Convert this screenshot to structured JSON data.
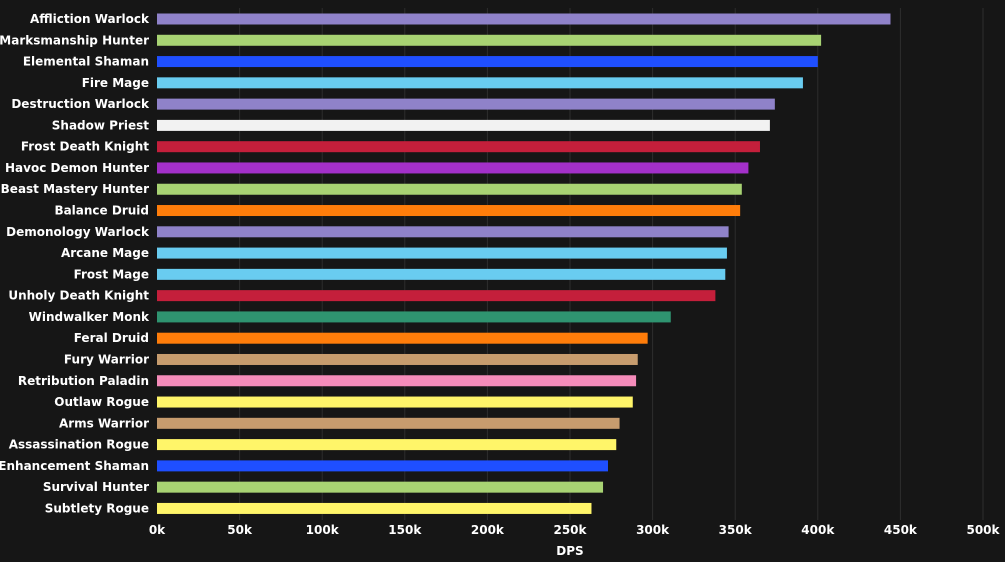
{
  "chart_data": {
    "type": "bar",
    "orientation": "horizontal",
    "xlabel": "DPS",
    "ylabel": "",
    "xlim": [
      0,
      500000
    ],
    "x_ticks": [
      0,
      50000,
      100000,
      150000,
      200000,
      250000,
      300000,
      350000,
      400000,
      450000,
      500000
    ],
    "x_tick_labels": [
      "0k",
      "50k",
      "100k",
      "150k",
      "200k",
      "250k",
      "300k",
      "350k",
      "400k",
      "450k",
      "500k"
    ],
    "grid": true,
    "legend": "none",
    "bars": [
      {
        "label": "Affliction Warlock",
        "value": 444000,
        "color": "#8f82c9"
      },
      {
        "label": "Marksmanship Hunter",
        "value": 402000,
        "color": "#a8d373"
      },
      {
        "label": "Elemental Shaman",
        "value": 400000,
        "color": "#1f4fff"
      },
      {
        "label": "Fire Mage",
        "value": 391000,
        "color": "#69ccf0"
      },
      {
        "label": "Destruction Warlock",
        "value": 374000,
        "color": "#8f82c9"
      },
      {
        "label": "Shadow Priest",
        "value": 371000,
        "color": "#f2f2f2"
      },
      {
        "label": "Frost Death Knight",
        "value": 365000,
        "color": "#c41f3b"
      },
      {
        "label": "Havoc Demon Hunter",
        "value": 358000,
        "color": "#a330c9"
      },
      {
        "label": "Beast Mastery Hunter",
        "value": 354000,
        "color": "#a8d373"
      },
      {
        "label": "Balance Druid",
        "value": 353000,
        "color": "#ff7d0a"
      },
      {
        "label": "Demonology Warlock",
        "value": 346000,
        "color": "#8f82c9"
      },
      {
        "label": "Arcane Mage",
        "value": 345000,
        "color": "#69ccf0"
      },
      {
        "label": "Frost Mage",
        "value": 344000,
        "color": "#69ccf0"
      },
      {
        "label": "Unholy Death Knight",
        "value": 338000,
        "color": "#c41f3b"
      },
      {
        "label": "Windwalker Monk",
        "value": 311000,
        "color": "#2f9470"
      },
      {
        "label": "Feral Druid",
        "value": 297000,
        "color": "#ff7d0a"
      },
      {
        "label": "Fury Warrior",
        "value": 291000,
        "color": "#c79c6e"
      },
      {
        "label": "Retribution Paladin",
        "value": 290000,
        "color": "#f58cba"
      },
      {
        "label": "Outlaw Rogue",
        "value": 288000,
        "color": "#fff569"
      },
      {
        "label": "Arms Warrior",
        "value": 280000,
        "color": "#c79c6e"
      },
      {
        "label": "Assassination Rogue",
        "value": 278000,
        "color": "#fff569"
      },
      {
        "label": "Enhancement Shaman",
        "value": 273000,
        "color": "#1f4fff"
      },
      {
        "label": "Survival Hunter",
        "value": 270000,
        "color": "#a8d373"
      },
      {
        "label": "Subtlety Rogue",
        "value": 263000,
        "color": "#fff569"
      }
    ]
  }
}
